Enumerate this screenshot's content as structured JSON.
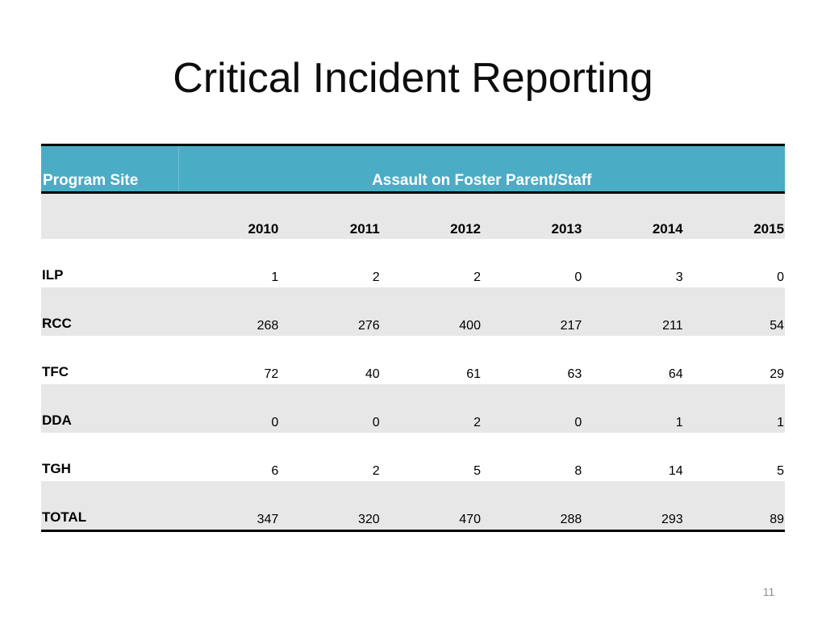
{
  "slide": {
    "title": "Critical Incident Reporting",
    "page_number": "11"
  },
  "table": {
    "row_header": "Program Site",
    "measure": "Assault on Foster Parent/Staff",
    "years": [
      "2010",
      "2011",
      "2012",
      "2013",
      "2014",
      "2015"
    ],
    "rows": [
      {
        "site": "ILP",
        "values": [
          "1",
          "2",
          "2",
          "0",
          "3",
          "0"
        ]
      },
      {
        "site": "RCC",
        "values": [
          "268",
          "276",
          "400",
          "217",
          "211",
          "54"
        ]
      },
      {
        "site": "TFC",
        "values": [
          "72",
          "40",
          "61",
          "63",
          "64",
          "29"
        ]
      },
      {
        "site": "DDA",
        "values": [
          "0",
          "0",
          "2",
          "0",
          "1",
          "1"
        ]
      },
      {
        "site": "TGH",
        "values": [
          "6",
          "2",
          "5",
          "8",
          "14",
          "5"
        ]
      },
      {
        "site": "TOTAL",
        "values": [
          "347",
          "320",
          "470",
          "288",
          "293",
          "89"
        ]
      }
    ]
  },
  "colors": {
    "header_band": "#4bacc6",
    "shaded_row": "#e7e7e7",
    "rule": "#000000"
  }
}
